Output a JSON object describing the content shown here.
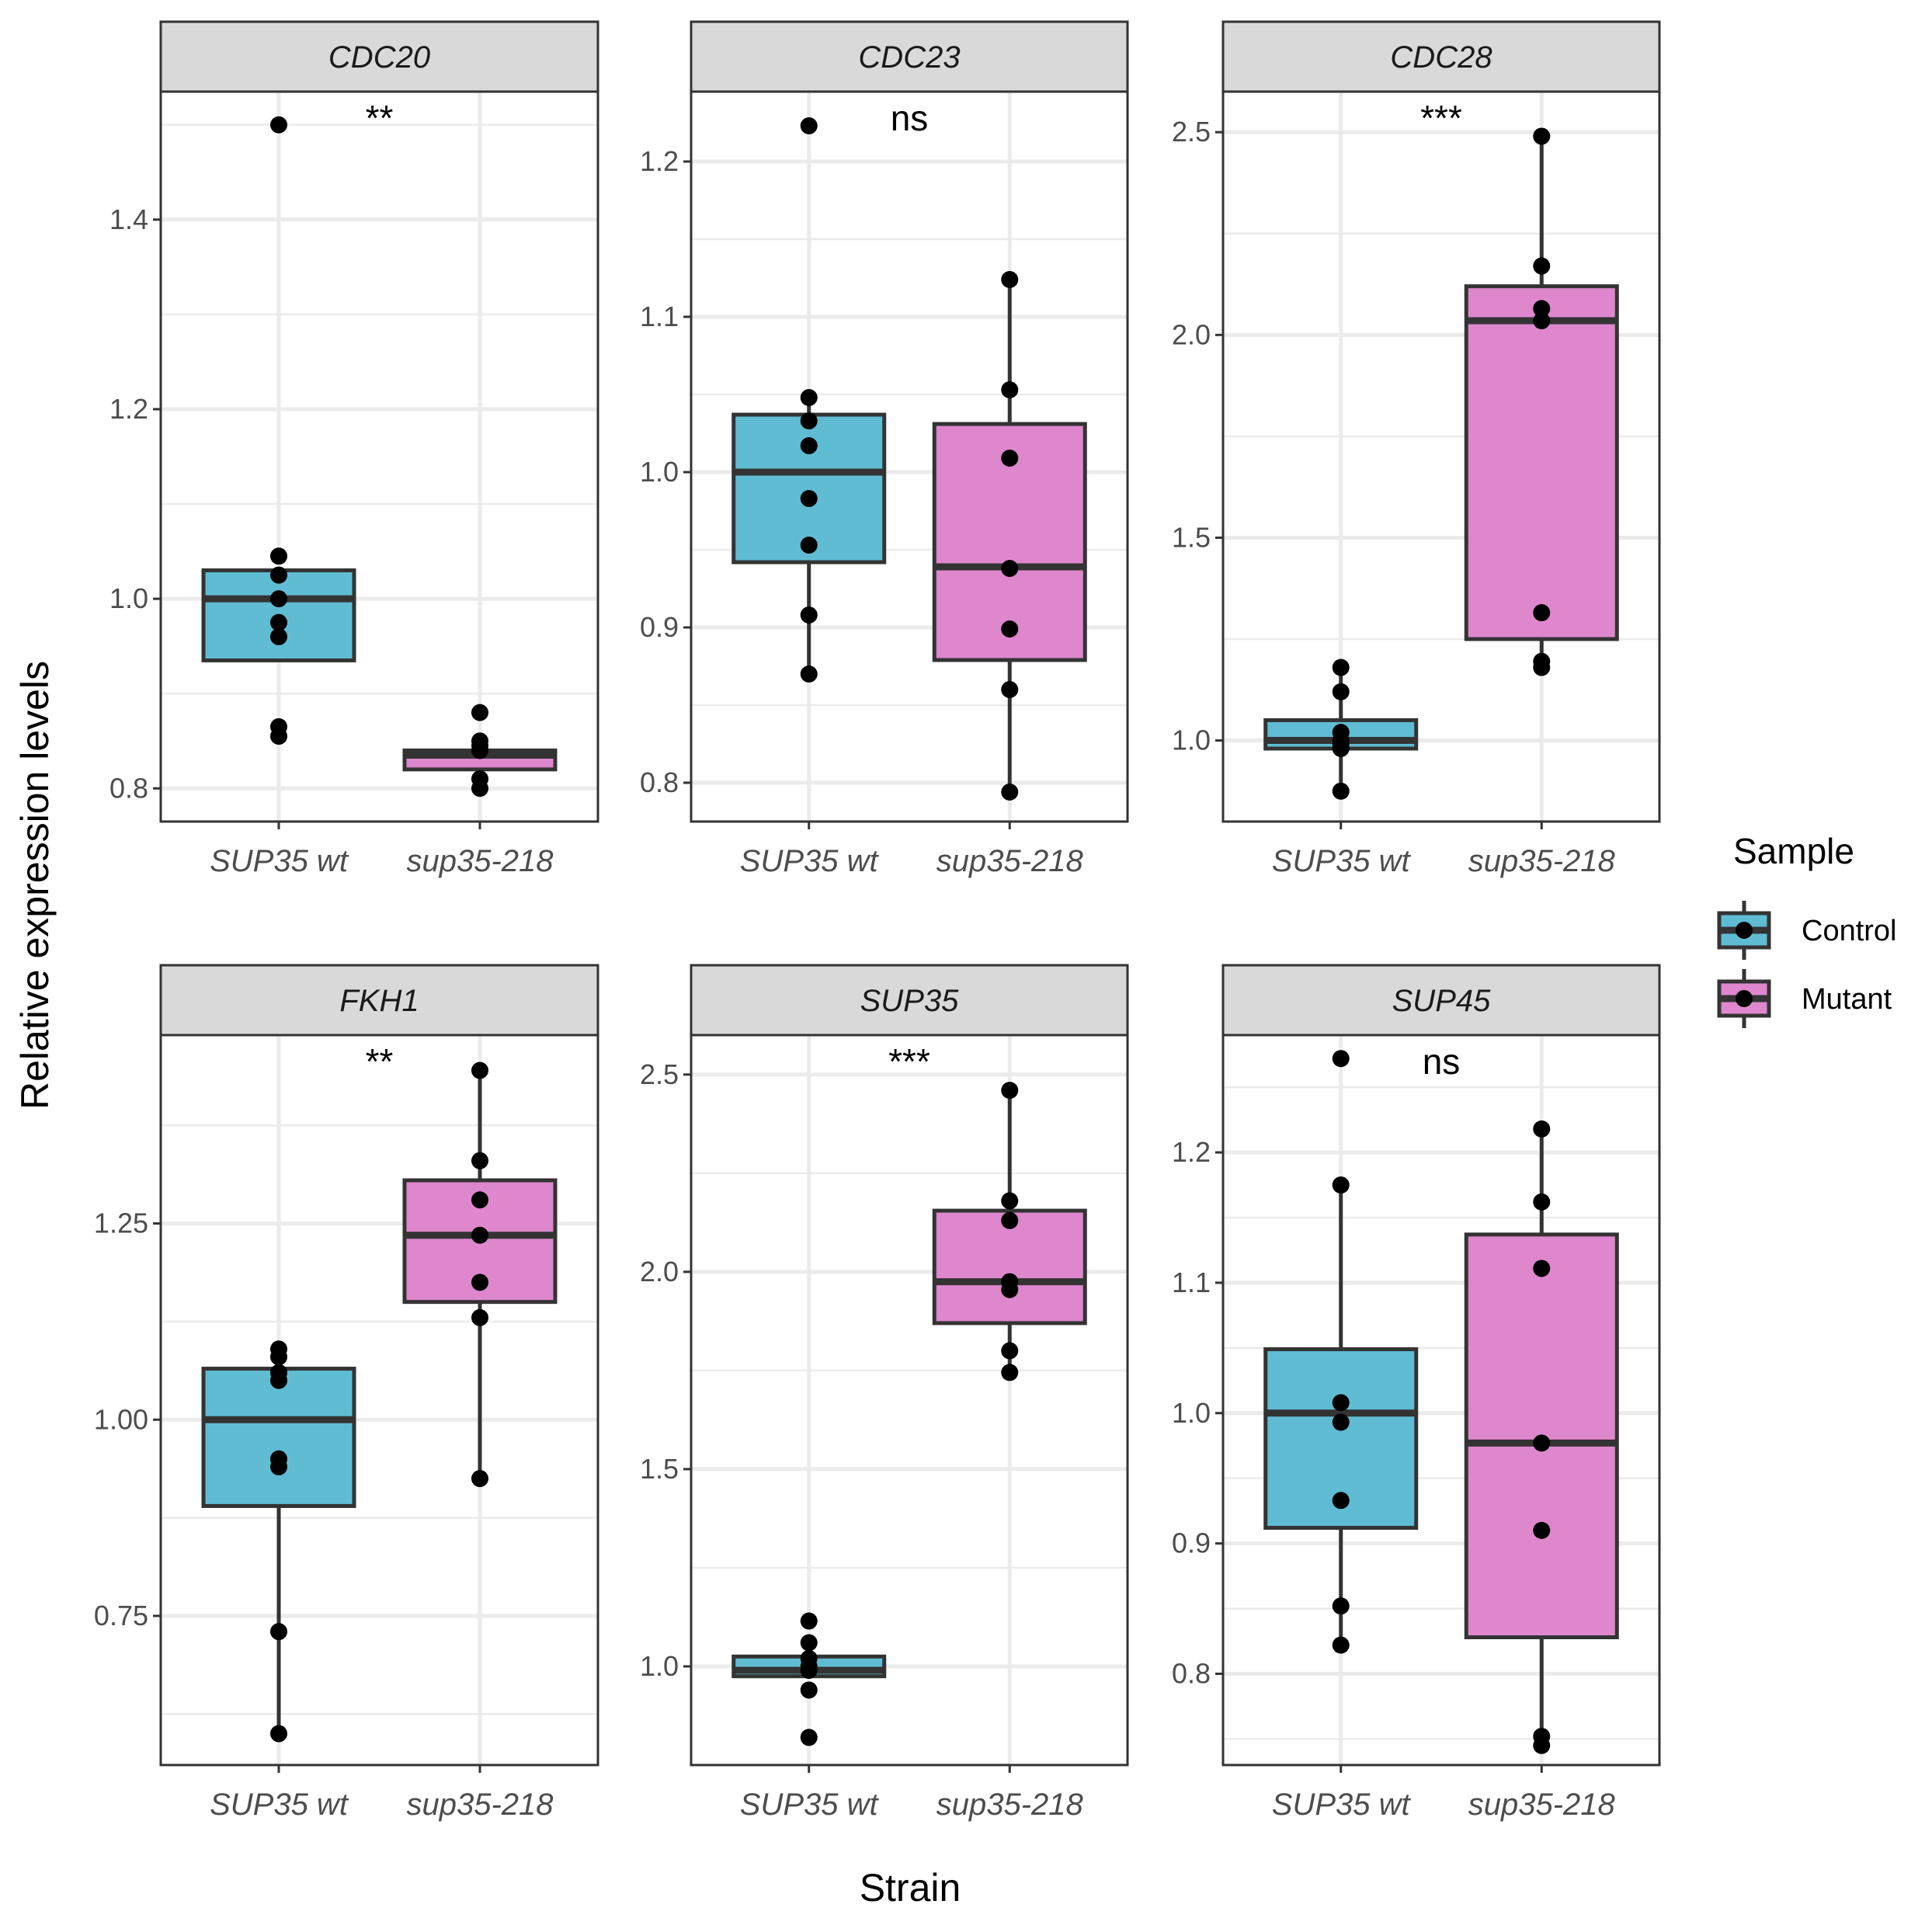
{
  "chart_data": {
    "type": "box",
    "x_title": "Strain",
    "y_title": "Relative expression levels",
    "categories": [
      "SUP35 wt",
      "sup35-218"
    ],
    "legend": {
      "title": "Sample",
      "position": "right",
      "entries": [
        {
          "name": "Control",
          "color": "#5fbcd3"
        },
        {
          "name": "Mutant",
          "color": "#de87cd"
        }
      ]
    },
    "panels": [
      {
        "gene": "CDC20",
        "significance": "**",
        "ylim": [
          0.765,
          1.535
        ],
        "yticks": [
          0.8,
          1.0,
          1.2,
          1.4
        ],
        "ytick_labels": [
          "0.8",
          "1.0",
          "1.2",
          "1.4"
        ],
        "groups": [
          {
            "sample": "Control",
            "q1": 0.935,
            "median": 1.0,
            "q3": 1.03,
            "wlow": 0.935,
            "whigh": 1.03,
            "points": [
              1.5,
              1.045,
              1.025,
              1.0,
              0.975,
              0.96,
              0.865,
              0.855
            ]
          },
          {
            "sample": "Mutant",
            "q1": 0.82,
            "median": 0.835,
            "q3": 0.84,
            "wlow": 0.82,
            "whigh": 0.84,
            "points": [
              0.88,
              0.85,
              0.845,
              0.84,
              0.81,
              0.8
            ]
          }
        ]
      },
      {
        "gene": "CDC23",
        "significance": "ns",
        "ylim": [
          0.775,
          1.245
        ],
        "yticks": [
          0.8,
          0.9,
          1.0,
          1.1,
          1.2
        ],
        "ytick_labels": [
          "0.8",
          "0.9",
          "1.0",
          "1.1",
          "1.2"
        ],
        "groups": [
          {
            "sample": "Control",
            "q1": 0.942,
            "median": 1.0,
            "q3": 1.037,
            "wlow": 0.87,
            "whigh": 1.048,
            "points": [
              1.223,
              1.048,
              1.033,
              1.017,
              0.983,
              0.953,
              0.908,
              0.87
            ]
          },
          {
            "sample": "Mutant",
            "q1": 0.879,
            "median": 0.939,
            "q3": 1.031,
            "wlow": 0.794,
            "whigh": 1.124,
            "points": [
              1.124,
              1.053,
              1.009,
              0.938,
              0.899,
              0.86,
              0.794
            ]
          }
        ]
      },
      {
        "gene": "CDC28",
        "significance": "***",
        "ylim": [
          0.8,
          2.6
        ],
        "yticks": [
          1.0,
          1.5,
          2.0,
          2.5
        ],
        "ytick_labels": [
          "1.0",
          "1.5",
          "2.0",
          "2.5"
        ],
        "groups": [
          {
            "sample": "Control",
            "q1": 0.98,
            "median": 1.0,
            "q3": 1.05,
            "wlow": 0.875,
            "whigh": 1.18,
            "points": [
              1.18,
              1.12,
              1.02,
              1.0,
              0.99,
              0.98,
              0.875
            ]
          },
          {
            "sample": "Mutant",
            "q1": 1.25,
            "median": 2.035,
            "q3": 2.12,
            "wlow": 1.18,
            "whigh": 2.49,
            "points": [
              2.49,
              2.17,
              2.065,
              2.035,
              1.315,
              1.195,
              1.18
            ]
          }
        ]
      },
      {
        "gene": "FKH1",
        "significance": "**",
        "ylim": [
          0.56,
          1.49
        ],
        "yticks": [
          0.75,
          1.0,
          1.25
        ],
        "ytick_labels": [
          "0.75",
          "1.00",
          "1.25"
        ],
        "groups": [
          {
            "sample": "Control",
            "q1": 0.89,
            "median": 1.0,
            "q3": 1.065,
            "wlow": 0.6,
            "whigh": 1.065,
            "points": [
              1.09,
              1.08,
              1.06,
              1.05,
              0.95,
              0.94,
              0.73,
              0.6
            ]
          },
          {
            "sample": "Mutant",
            "q1": 1.15,
            "median": 1.235,
            "q3": 1.305,
            "wlow": 0.925,
            "whigh": 1.445,
            "points": [
              1.445,
              1.33,
              1.28,
              1.235,
              1.175,
              1.13,
              0.925
            ]
          }
        ]
      },
      {
        "gene": "SUP35",
        "significance": "***",
        "ylim": [
          0.75,
          2.6
        ],
        "yticks": [
          1.0,
          1.5,
          2.0,
          2.5
        ],
        "ytick_labels": [
          "1.0",
          "1.5",
          "2.0",
          "2.5"
        ],
        "groups": [
          {
            "sample": "Control",
            "q1": 0.975,
            "median": 0.99,
            "q3": 1.025,
            "wlow": 0.975,
            "whigh": 1.025,
            "points": [
              1.115,
              1.06,
              1.02,
              1.0,
              0.99,
              0.94,
              0.82
            ]
          },
          {
            "sample": "Mutant",
            "q1": 1.87,
            "median": 1.975,
            "q3": 2.155,
            "wlow": 1.745,
            "whigh": 2.46,
            "points": [
              2.46,
              2.18,
              2.13,
              1.975,
              1.955,
              1.8,
              1.745
            ]
          }
        ]
      },
      {
        "gene": "SUP45",
        "significance": "ns",
        "ylim": [
          0.73,
          1.29
        ],
        "yticks": [
          0.8,
          0.9,
          1.0,
          1.1,
          1.2
        ],
        "ytick_labels": [
          "0.8",
          "0.9",
          "1.0",
          "1.1",
          "1.2"
        ],
        "groups": [
          {
            "sample": "Control",
            "q1": 0.912,
            "median": 1.0,
            "q3": 1.049,
            "wlow": 0.822,
            "whigh": 1.175,
            "points": [
              1.272,
              1.175,
              1.008,
              0.993,
              0.933,
              0.852,
              0.822
            ]
          },
          {
            "sample": "Mutant",
            "q1": 0.828,
            "median": 0.977,
            "q3": 1.137,
            "wlow": 0.745,
            "whigh": 1.218,
            "points": [
              1.218,
              1.162,
              1.111,
              0.977,
              0.91,
              0.752,
              0.745
            ]
          }
        ]
      }
    ]
  }
}
